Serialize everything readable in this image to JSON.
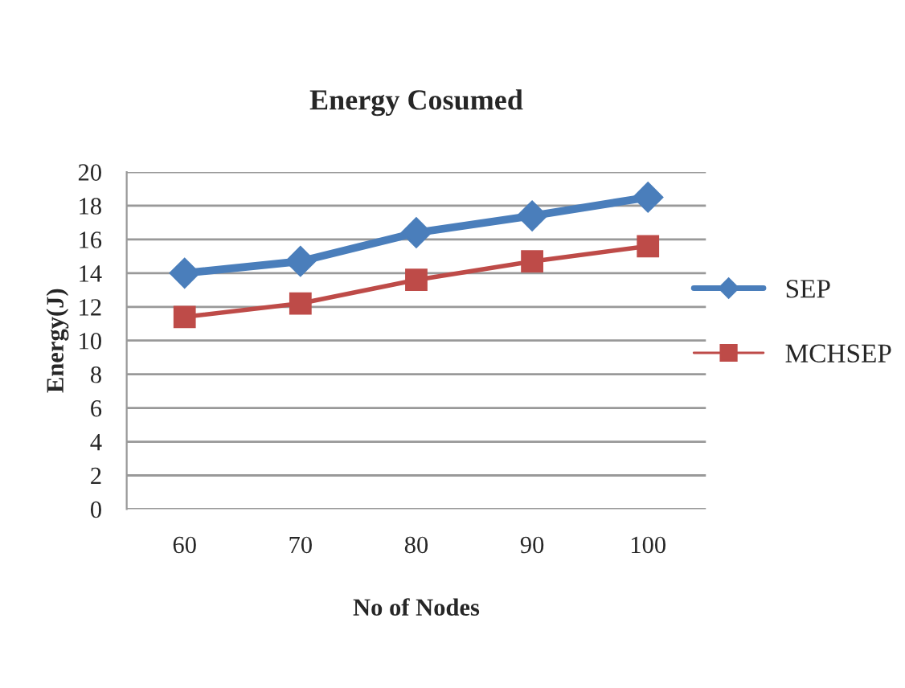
{
  "chart_data": {
    "type": "line",
    "title": "Energy Cosumed",
    "xlabel": "No of Nodes",
    "ylabel": "Energy(J)",
    "categories": [
      "60",
      "70",
      "80",
      "90",
      "100"
    ],
    "series": [
      {
        "name": "SEP",
        "color": "#4a7ebb",
        "marker": "diamond",
        "values": [
          14.0,
          14.7,
          16.4,
          17.4,
          18.5
        ]
      },
      {
        "name": "MCHSEP",
        "color": "#be4b48",
        "marker": "square",
        "values": [
          11.4,
          12.2,
          13.6,
          14.7,
          15.6
        ]
      }
    ],
    "ylim": [
      0,
      20
    ],
    "yticks": [
      0,
      2,
      4,
      6,
      8,
      10,
      12,
      14,
      16,
      18,
      20
    ],
    "grid": "y",
    "legend": "right",
    "line_style": "solid"
  }
}
